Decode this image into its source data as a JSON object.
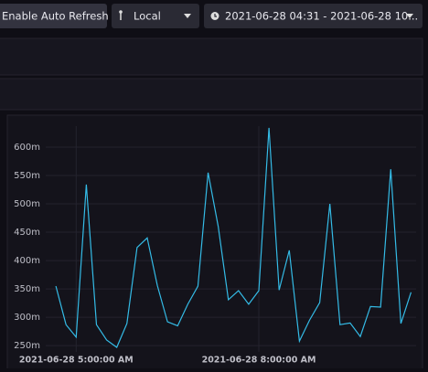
{
  "toolbar": {
    "auto_refresh": "Enable Auto Refresh",
    "timezone": "Local",
    "time_range": "2021-06-28 04:31 - 2021-06-28 10..."
  },
  "chart_data": {
    "type": "line",
    "color": "#34bbe6",
    "x": [
      "2021-06-28T04:40",
      "2021-06-28T04:50",
      "2021-06-28T05:00",
      "2021-06-28T05:10",
      "2021-06-28T05:20",
      "2021-06-28T05:30",
      "2021-06-28T05:40",
      "2021-06-28T05:50",
      "2021-06-28T06:00",
      "2021-06-28T06:10",
      "2021-06-28T06:20",
      "2021-06-28T06:30",
      "2021-06-28T06:40",
      "2021-06-28T06:50",
      "2021-06-28T07:00",
      "2021-06-28T07:10",
      "2021-06-28T07:20",
      "2021-06-28T07:30",
      "2021-06-28T07:40",
      "2021-06-28T07:50",
      "2021-06-28T08:00",
      "2021-06-28T08:10",
      "2021-06-28T08:20",
      "2021-06-28T08:30",
      "2021-06-28T08:40",
      "2021-06-28T08:50",
      "2021-06-28T09:00",
      "2021-06-28T09:10",
      "2021-06-28T09:20",
      "2021-06-28T09:30",
      "2021-06-28T09:40",
      "2021-06-28T09:50",
      "2021-06-28T10:00",
      "2021-06-28T10:10",
      "2021-06-28T10:20",
      "2021-06-28T10:30"
    ],
    "values": [
      355,
      287,
      265,
      534,
      287,
      260,
      247,
      289,
      423,
      440,
      356,
      292,
      285,
      323,
      355,
      555,
      460,
      331,
      347,
      323,
      347,
      634,
      348,
      418,
      258,
      295,
      326,
      500,
      287,
      290,
      266,
      319,
      318,
      561,
      289,
      344
    ],
    "xlim": [
      "2021-06-28T04:30",
      "2021-06-28T10:35"
    ],
    "xticks": [
      {
        "value": "2021-06-28T05:00",
        "label": "2021-06-28 5:00:00 AM"
      },
      {
        "value": "2021-06-28T08:00",
        "label": "2021-06-28 8:00:00 AM"
      }
    ],
    "ylim": [
      239,
      637
    ],
    "yticks": [
      {
        "value": 250,
        "label": "250m"
      },
      {
        "value": 300,
        "label": "300m"
      },
      {
        "value": 350,
        "label": "350m"
      },
      {
        "value": 400,
        "label": "400m"
      },
      {
        "value": 450,
        "label": "450m"
      },
      {
        "value": 500,
        "label": "500m"
      },
      {
        "value": 550,
        "label": "550m"
      },
      {
        "value": 600,
        "label": "600m"
      }
    ],
    "grid": true
  }
}
